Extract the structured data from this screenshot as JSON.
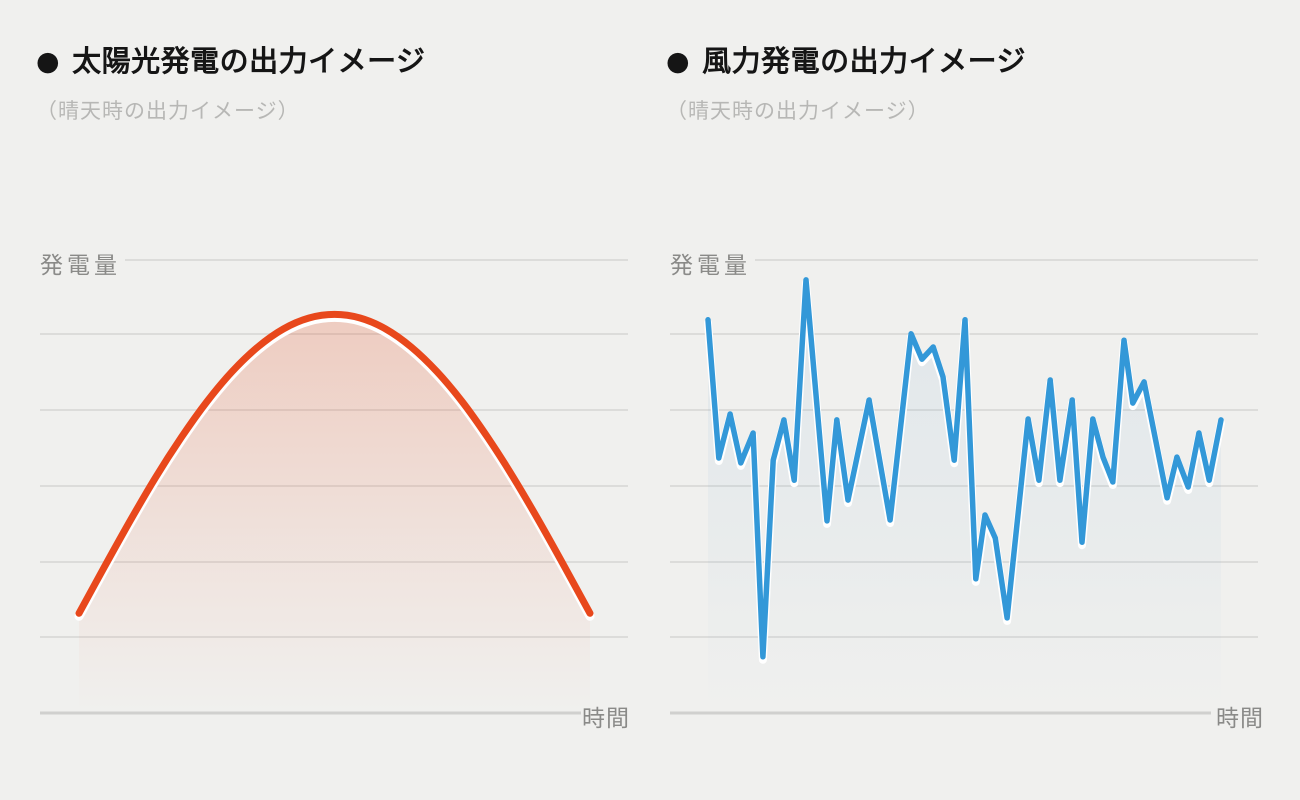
{
  "page": {
    "background": "#f0f0ee"
  },
  "charts": [
    {
      "id": "solar",
      "bullet": "●",
      "title": "太陽光発電の出力イメージ",
      "subtitle": "（晴天時の出力イメージ）",
      "y_axis_label": "発電量",
      "x_axis_label": "時間",
      "line_color": "#e8481c",
      "fill_rgb": "232,75,30",
      "chart_data": {
        "type": "area",
        "title": "太陽光発電の出力イメージ",
        "subtitle": "（晴天時の出力イメージ）",
        "xlabel": "時間",
        "ylabel": "発電量",
        "x_range": [
          0,
          1
        ],
        "y_range": [
          0,
          100
        ],
        "grid": true,
        "gridline_count": 7,
        "legend": "none",
        "smooth": true,
        "points": [
          [
            0.0,
            22.0
          ],
          [
            0.05,
            32.3
          ],
          [
            0.1,
            42.4
          ],
          [
            0.15,
            52.0
          ],
          [
            0.2,
            60.8
          ],
          [
            0.25,
            68.7
          ],
          [
            0.3,
            75.4
          ],
          [
            0.35,
            80.8
          ],
          [
            0.4,
            84.8
          ],
          [
            0.45,
            87.2
          ],
          [
            0.5,
            88.0
          ],
          [
            0.55,
            87.2
          ],
          [
            0.6,
            84.8
          ],
          [
            0.65,
            80.8
          ],
          [
            0.7,
            75.4
          ],
          [
            0.75,
            68.7
          ],
          [
            0.8,
            60.8
          ],
          [
            0.85,
            52.0
          ],
          [
            0.9,
            42.4
          ],
          [
            0.95,
            32.3
          ],
          [
            1.0,
            22.0
          ]
        ]
      }
    },
    {
      "id": "wind",
      "bullet": "●",
      "title": "風力発電の出力イメージ",
      "subtitle": "（晴天時の出力イメージ）",
      "y_axis_label": "発電量",
      "x_axis_label": "時間",
      "line_color": "#3398d8",
      "fill_rgb": "96,155,205",
      "chart_data": {
        "type": "line",
        "title": "風力発電の出力イメージ",
        "subtitle": "（晴天時の出力イメージ）",
        "xlabel": "時間",
        "ylabel": "発電量",
        "x_range": [
          0,
          1
        ],
        "y_range": [
          0,
          100
        ],
        "grid": true,
        "gridline_count": 7,
        "legend": "none",
        "smooth": false,
        "points": [
          [
            0.0,
            86.8
          ],
          [
            0.021,
            56.3
          ],
          [
            0.043,
            66.0
          ],
          [
            0.064,
            55.2
          ],
          [
            0.088,
            61.8
          ],
          [
            0.107,
            12.4
          ],
          [
            0.127,
            55.8
          ],
          [
            0.148,
            64.7
          ],
          [
            0.168,
            51.4
          ],
          [
            0.191,
            95.6
          ],
          [
            0.232,
            42.4
          ],
          [
            0.251,
            64.7
          ],
          [
            0.273,
            47.0
          ],
          [
            0.314,
            69.1
          ],
          [
            0.355,
            42.6
          ],
          [
            0.396,
            83.7
          ],
          [
            0.417,
            78.1
          ],
          [
            0.439,
            80.8
          ],
          [
            0.458,
            74.2
          ],
          [
            0.48,
            55.8
          ],
          [
            0.501,
            86.8
          ],
          [
            0.522,
            29.6
          ],
          [
            0.54,
            43.7
          ],
          [
            0.56,
            38.6
          ],
          [
            0.583,
            21.0
          ],
          [
            0.624,
            64.9
          ],
          [
            0.645,
            51.4
          ],
          [
            0.667,
            73.5
          ],
          [
            0.686,
            51.4
          ],
          [
            0.71,
            69.1
          ],
          [
            0.729,
            37.7
          ],
          [
            0.75,
            64.9
          ],
          [
            0.77,
            56.5
          ],
          [
            0.789,
            51.0
          ],
          [
            0.811,
            82.3
          ],
          [
            0.828,
            68.4
          ],
          [
            0.85,
            73.1
          ],
          [
            0.895,
            47.5
          ],
          [
            0.914,
            56.5
          ],
          [
            0.936,
            49.9
          ],
          [
            0.957,
            61.8
          ],
          [
            0.977,
            51.4
          ],
          [
            1.0,
            64.7
          ]
        ]
      }
    }
  ]
}
